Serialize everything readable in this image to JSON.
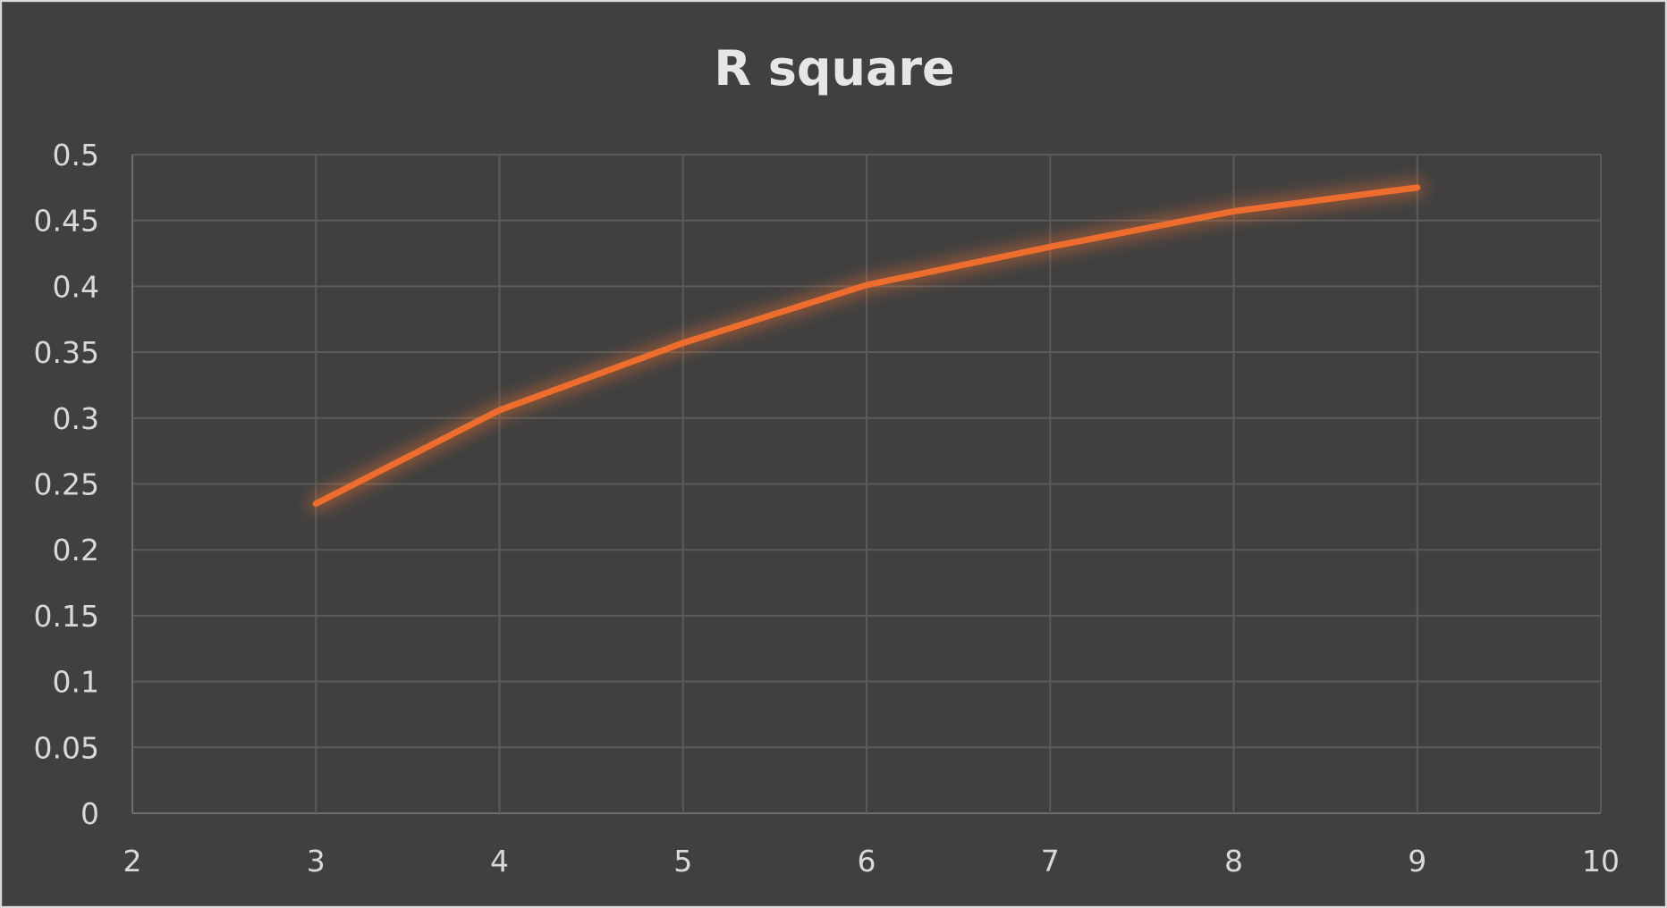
{
  "chart_data": {
    "type": "line",
    "title": "R square",
    "xlabel": "",
    "ylabel": "",
    "xlim": [
      2,
      10
    ],
    "ylim": [
      0,
      0.5
    ],
    "xticks": [
      "2",
      "3",
      "4",
      "5",
      "6",
      "7",
      "8",
      "9",
      "10"
    ],
    "yticks": [
      "0",
      "0.05",
      "0.1",
      "0.15",
      "0.2",
      "0.25",
      "0.3",
      "0.35",
      "0.4",
      "0.45",
      "0.5"
    ],
    "grid": true,
    "legend": "none",
    "series": [
      {
        "x": [
          3,
          4,
          5,
          6,
          7,
          8,
          9
        ],
        "y": [
          0.235,
          0.306,
          0.357,
          0.401,
          0.43,
          0.457,
          0.475
        ],
        "color": "#ED6D2E"
      }
    ]
  },
  "colors": {
    "background": "#404040",
    "grid": "#5b5b5b",
    "text": "#d9d9d9",
    "line": "#ED6D2E"
  }
}
